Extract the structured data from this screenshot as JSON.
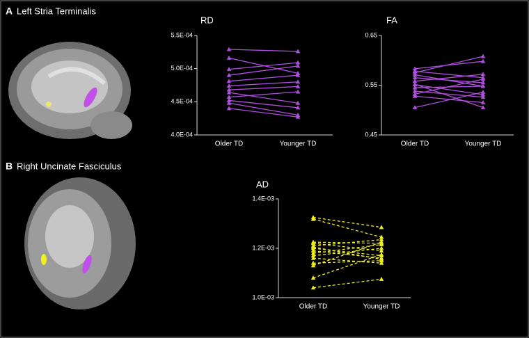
{
  "panels": [
    {
      "letter": "A",
      "label": "Left Stria Terminalis"
    },
    {
      "letter": "B",
      "label": "Right Uncinate Fasciculus"
    }
  ],
  "chart_data": [
    {
      "type": "line",
      "title": "RD",
      "categories": [
        "Older TD",
        "Younger TD"
      ],
      "color": "#b04fe0",
      "dashed": false,
      "ylim": [
        0.0004,
        0.00055
      ],
      "yticks": [
        {
          "value": 0.0004,
          "label": "4.0E-04"
        },
        {
          "value": 0.00045,
          "label": "4.5E-04"
        },
        {
          "value": 0.0005,
          "label": "5.0E-04"
        },
        {
          "value": 0.00055,
          "label": "5.5E-04"
        }
      ],
      "series": [
        {
          "values": [
            0.000529,
            0.000526
          ]
        },
        {
          "values": [
            0.000516,
            0.000493
          ]
        },
        {
          "values": [
            0.000499,
            0.000509
          ]
        },
        {
          "values": [
            0.00049,
            0.000504
          ]
        },
        {
          "values": [
            0.000481,
            0.00049
          ]
        },
        {
          "values": [
            0.000474,
            0.00048
          ]
        },
        {
          "values": [
            0.000468,
            0.000473
          ]
        },
        {
          "values": [
            0.000464,
            0.000448
          ]
        },
        {
          "values": [
            0.000457,
            0.000465
          ]
        },
        {
          "values": [
            0.000452,
            0.000441
          ]
        },
        {
          "values": [
            0.000448,
            0.00043
          ]
        },
        {
          "values": [
            0.00044,
            0.000427
          ]
        }
      ]
    },
    {
      "type": "line",
      "title": "FA",
      "categories": [
        "Older TD",
        "Younger TD"
      ],
      "color": "#b04fe0",
      "dashed": false,
      "ylim": [
        0.45,
        0.65
      ],
      "yticks": [
        0.45,
        0.55,
        0.65
      ],
      "series": [
        {
          "values": [
            0.583,
            0.598
          ]
        },
        {
          "values": [
            0.578,
            0.565
          ]
        },
        {
          "values": [
            0.575,
            0.608
          ]
        },
        {
          "values": [
            0.571,
            0.548
          ]
        },
        {
          "values": [
            0.565,
            0.555
          ]
        },
        {
          "values": [
            0.558,
            0.572
          ]
        },
        {
          "values": [
            0.551,
            0.531
          ]
        },
        {
          "values": [
            0.545,
            0.548
          ]
        },
        {
          "values": [
            0.538,
            0.526
          ]
        },
        {
          "values": [
            0.532,
            0.562
          ]
        },
        {
          "values": [
            0.528,
            0.515
          ]
        },
        {
          "values": [
            0.505,
            0.536
          ]
        },
        {
          "values": [
            0.552,
            0.505
          ]
        }
      ]
    },
    {
      "type": "line",
      "title": "AD",
      "categories": [
        "Older TD",
        "Younger TD"
      ],
      "color": "#f2ef1a",
      "dashed": true,
      "ylim": [
        0.001,
        0.0014
      ],
      "yticks": [
        {
          "value": 0.001,
          "label": "1.0E-03"
        },
        {
          "value": 0.0012,
          "label": "1.2E-03"
        },
        {
          "value": 0.0014,
          "label": "1.4E-03"
        }
      ],
      "series": [
        {
          "values": [
            0.001325,
            0.001285
          ]
        },
        {
          "values": [
            0.001318,
            0.001245
          ]
        },
        {
          "values": [
            0.001225,
            0.00122
          ]
        },
        {
          "values": [
            0.00122,
            0.00119
          ]
        },
        {
          "values": [
            0.00121,
            0.001235
          ]
        },
        {
          "values": [
            0.0012,
            0.00117
          ]
        },
        {
          "values": [
            0.00119,
            0.00116
          ]
        },
        {
          "values": [
            0.00118,
            0.001215
          ]
        },
        {
          "values": [
            0.00117,
            0.0012
          ]
        },
        {
          "values": [
            0.00116,
            0.00114
          ]
        },
        {
          "values": [
            0.00114,
            0.00115
          ]
        },
        {
          "values": [
            0.00113,
            0.001225
          ]
        },
        {
          "values": [
            0.00108,
            0.001175
          ]
        },
        {
          "values": [
            0.00104,
            0.001075
          ]
        },
        {
          "values": [
            0.001205,
            0.001155
          ]
        }
      ]
    }
  ]
}
